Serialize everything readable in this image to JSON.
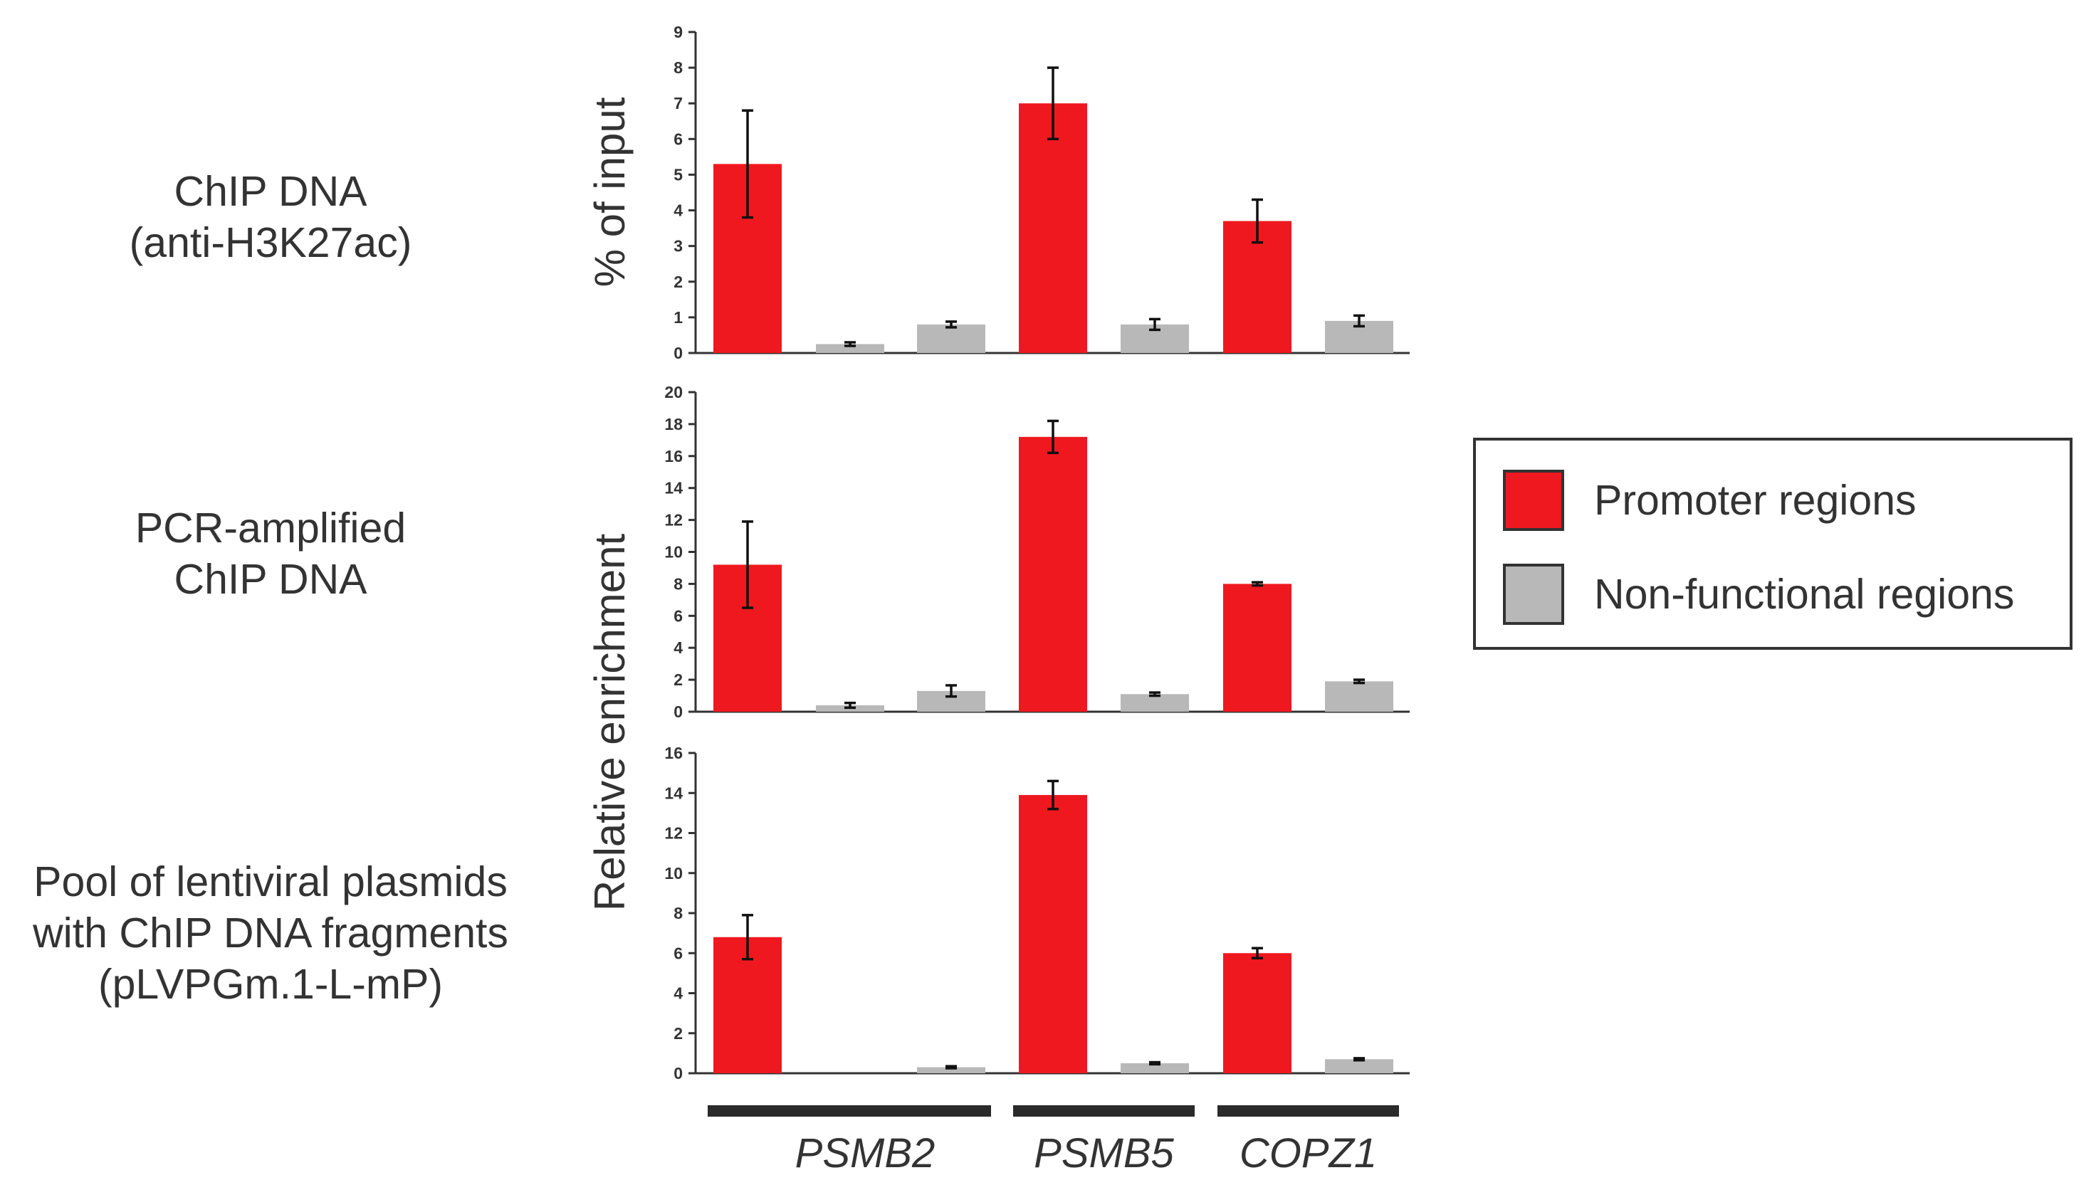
{
  "row_labels": [
    {
      "lines": [
        "ChIP DNA",
        "(anti-H3K27ac)"
      ]
    },
    {
      "lines": [
        "PCR-amplified",
        "ChIP DNA"
      ]
    },
    {
      "lines": [
        "Pool of lentiviral plasmids",
        "with ChIP DNA fragments",
        "(pLVPGm.1-L-mP)"
      ]
    }
  ],
  "legend": {
    "promoter_label": "Promoter regions",
    "nonfunctional_label": "Non-functional regions"
  },
  "colors": {
    "promoter": "#f0181f",
    "nonfunctional": "#b8b8b8",
    "axis": "#333333",
    "error_bar": "#111111",
    "gene_bar": "#2a2a2a"
  },
  "gene_labels": [
    "PSMB2",
    "PSMB5",
    "COPZ1"
  ],
  "chart_data": [
    {
      "type": "bar",
      "title": "ChIP DNA (anti-H3K27ac)",
      "ylabel": "% of input",
      "ylim": [
        0,
        9
      ],
      "yticks": [
        0,
        1,
        2,
        3,
        4,
        5,
        6,
        7,
        8,
        9
      ],
      "categories": [
        "PSMB2 promoter",
        "PSMB2 non-functional 1",
        "PSMB2 non-functional 2",
        "PSMB5 promoter",
        "PSMB5 non-functional",
        "COPZ1 promoter",
        "COPZ1 non-functional"
      ],
      "bar_kind": [
        "promoter",
        "nonfunctional",
        "nonfunctional",
        "promoter",
        "nonfunctional",
        "promoter",
        "nonfunctional"
      ],
      "values": [
        5.3,
        0.25,
        0.8,
        7.0,
        0.8,
        3.7,
        0.9
      ],
      "errors": [
        1.5,
        0.05,
        0.08,
        1.0,
        0.15,
        0.6,
        0.15
      ]
    },
    {
      "type": "bar",
      "title": "PCR-amplified ChIP DNA",
      "ylabel": "Relative enrichment",
      "ylim": [
        0,
        20
      ],
      "yticks": [
        0,
        2,
        4,
        6,
        8,
        10,
        12,
        14,
        16,
        18,
        20
      ],
      "categories": [
        "PSMB2 promoter",
        "PSMB2 non-functional 1",
        "PSMB2 non-functional 2",
        "PSMB5 promoter",
        "PSMB5 non-functional",
        "COPZ1 promoter",
        "COPZ1 non-functional"
      ],
      "bar_kind": [
        "promoter",
        "nonfunctional",
        "nonfunctional",
        "promoter",
        "nonfunctional",
        "promoter",
        "nonfunctional"
      ],
      "values": [
        9.2,
        0.4,
        1.3,
        17.2,
        1.1,
        8.0,
        1.9
      ],
      "errors": [
        2.7,
        0.15,
        0.35,
        1.0,
        0.1,
        0.1,
        0.1
      ]
    },
    {
      "type": "bar",
      "title": "Pool of lentiviral plasmids with ChIP DNA fragments (pLVPGm.1-L-mP)",
      "ylabel": "Relative enrichment",
      "ylim": [
        0,
        16
      ],
      "yticks": [
        0,
        2,
        4,
        6,
        8,
        10,
        12,
        14,
        16
      ],
      "categories": [
        "PSMB2 promoter",
        "PSMB2 non-functional 1",
        "PSMB2 non-functional 2",
        "PSMB5 promoter",
        "PSMB5 non-functional",
        "COPZ1 promoter",
        "COPZ1 non-functional"
      ],
      "bar_kind": [
        "promoter",
        "nonfunctional",
        "nonfunctional",
        "promoter",
        "nonfunctional",
        "promoter",
        "nonfunctional"
      ],
      "values": [
        6.8,
        0.0,
        0.3,
        13.9,
        0.5,
        6.0,
        0.7
      ],
      "errors": [
        1.1,
        0.0,
        0.05,
        0.7,
        0.05,
        0.25,
        0.05
      ]
    }
  ]
}
